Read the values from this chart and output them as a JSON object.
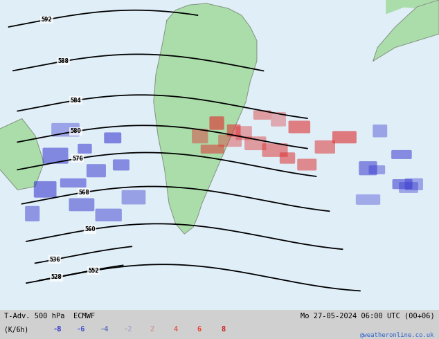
{
  "title_left": "T-Adv. 500 hPa  ECMWF",
  "title_right": "Mo 27-05-2024 06:00 UTC (00+06)",
  "unit_label": "(K/6h)",
  "colorbar_values": [
    -8,
    -6,
    -4,
    -2,
    2,
    4,
    6,
    8
  ],
  "colorbar_colors_neg": [
    "#3333cc",
    "#4455cc",
    "#6677bb",
    "#aaaacc"
  ],
  "colorbar_colors_pos": [
    "#cc9999",
    "#dd6655",
    "#ee4433",
    "#cc2222"
  ],
  "website": "@weatheronline.co.uk",
  "website_color": "#3366cc",
  "bg_color": "#e8e8e8",
  "ocean_color": "#e0eef8",
  "land_color": "#aaddaa",
  "contour_color": "#000000",
  "fig_width": 6.34,
  "fig_height": 4.9,
  "dpi": 100,
  "bottom_bar_color": "#d0d0d0"
}
